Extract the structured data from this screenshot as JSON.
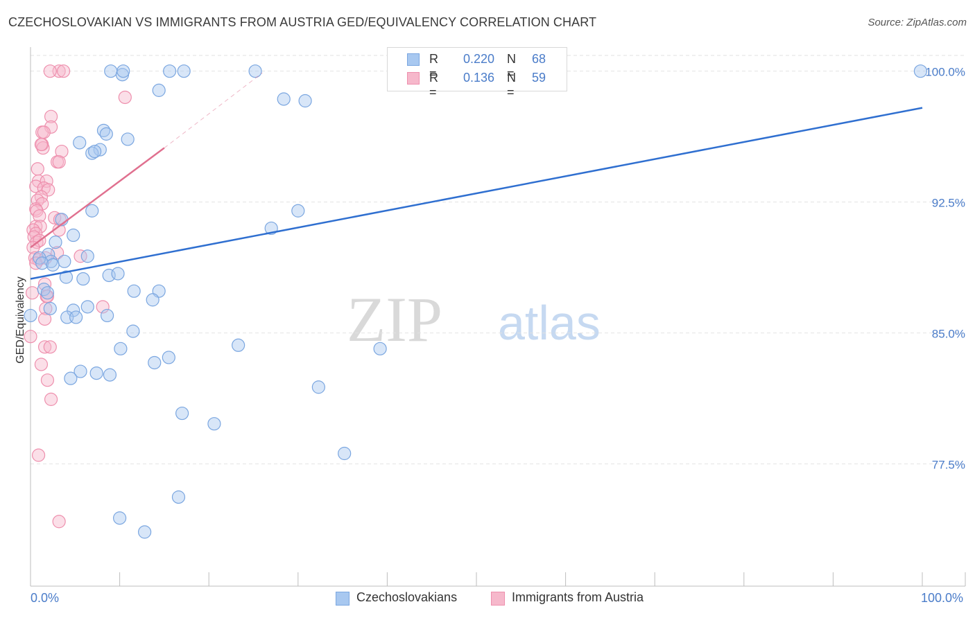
{
  "title": "CZECHOSLOVAKIAN VS IMMIGRANTS FROM AUSTRIA GED/EQUIVALENCY CORRELATION CHART",
  "source": "Source: ZipAtlas.com",
  "watermark": {
    "zip": "ZIP",
    "atlas": "atlas"
  },
  "colors": {
    "blue_fill": "#a8c8f0",
    "blue_stroke": "#7aa6e0",
    "blue_line": "#2f6fd0",
    "pink_fill": "#f6b8cb",
    "pink_stroke": "#ee8fad",
    "pink_line": "#e0708f",
    "axis_text": "#4a7cc9",
    "grid": "#e2e2e2"
  },
  "legend": {
    "rows": [
      {
        "r_label": "R =",
        "r_value": "0.220",
        "n_label": "N =",
        "n_value": "68"
      },
      {
        "r_label": "R =",
        "r_value": "0.136",
        "n_label": "N =",
        "n_value": "59"
      }
    ]
  },
  "bottom_legend": {
    "series1": "Czechoslovakians",
    "series2": "Immigrants from Austria"
  },
  "x_axis": {
    "min_label": "0.0%",
    "max_label": "100.0%"
  },
  "chart_data": {
    "type": "scatter",
    "title": "CZECHOSLOVAKIAN VS IMMIGRANTS FROM AUSTRIA GED/EQUIVALENCY CORRELATION CHART",
    "xlabel": "",
    "ylabel": "GED/Equivalency",
    "xlim": [
      0,
      100
    ],
    "ylim": [
      70.5,
      100.9
    ],
    "y_ticks": [
      {
        "value": 100.0,
        "label": "100.0%"
      },
      {
        "value": 92.5,
        "label": "92.5%"
      },
      {
        "value": 85.0,
        "label": "85.0%"
      },
      {
        "value": 77.5,
        "label": "77.5%"
      }
    ],
    "x_tick_values": [
      0,
      10,
      20,
      30,
      40,
      50,
      60,
      70,
      80,
      90,
      100
    ],
    "grid": true,
    "series": [
      {
        "name": "Czechoslovakians",
        "color": "blue",
        "points": [
          [
            9.0,
            100.0
          ],
          [
            10.3,
            99.8
          ],
          [
            10.4,
            100.0
          ],
          [
            15.6,
            100.0
          ],
          [
            17.2,
            100.0
          ],
          [
            25.2,
            100.0
          ],
          [
            99.8,
            100.0
          ],
          [
            14.4,
            98.9
          ],
          [
            28.4,
            98.4
          ],
          [
            30.8,
            98.3
          ],
          [
            8.2,
            96.6
          ],
          [
            8.5,
            96.4
          ],
          [
            10.9,
            96.1
          ],
          [
            5.5,
            95.9
          ],
          [
            7.8,
            95.5
          ],
          [
            6.9,
            95.3
          ],
          [
            7.2,
            95.4
          ],
          [
            3.5,
            91.5
          ],
          [
            6.9,
            92.0
          ],
          [
            30.0,
            92.0
          ],
          [
            27.0,
            91.0
          ],
          [
            2.8,
            90.2
          ],
          [
            4.8,
            90.6
          ],
          [
            2.0,
            89.5
          ],
          [
            2.3,
            89.1
          ],
          [
            1.0,
            89.3
          ],
          [
            1.3,
            89.0
          ],
          [
            3.8,
            89.1
          ],
          [
            6.4,
            89.4
          ],
          [
            2.5,
            88.9
          ],
          [
            4.0,
            88.2
          ],
          [
            5.9,
            88.1
          ],
          [
            8.8,
            88.3
          ],
          [
            9.8,
            88.4
          ],
          [
            1.5,
            87.5
          ],
          [
            1.9,
            87.3
          ],
          [
            11.6,
            87.4
          ],
          [
            14.4,
            87.4
          ],
          [
            13.7,
            86.9
          ],
          [
            2.2,
            86.4
          ],
          [
            4.8,
            86.3
          ],
          [
            6.4,
            86.5
          ],
          [
            4.1,
            85.9
          ],
          [
            5.1,
            85.9
          ],
          [
            8.6,
            86.0
          ],
          [
            0.0,
            86.0
          ],
          [
            11.5,
            85.1
          ],
          [
            10.1,
            84.1
          ],
          [
            23.3,
            84.3
          ],
          [
            39.2,
            84.1
          ],
          [
            15.5,
            83.6
          ],
          [
            13.9,
            83.3
          ],
          [
            5.6,
            82.8
          ],
          [
            4.5,
            82.4
          ],
          [
            7.4,
            82.7
          ],
          [
            8.9,
            82.6
          ],
          [
            32.3,
            81.9
          ],
          [
            17.0,
            80.4
          ],
          [
            20.6,
            79.8
          ],
          [
            35.2,
            78.1
          ],
          [
            16.6,
            75.6
          ],
          [
            10.0,
            74.4
          ],
          [
            12.8,
            73.6
          ]
        ]
      },
      {
        "name": "Immigrants from Austria",
        "color": "pink",
        "points": [
          [
            3.2,
            100.0
          ],
          [
            3.7,
            100.0
          ],
          [
            2.2,
            100.0
          ],
          [
            10.6,
            98.5
          ],
          [
            2.3,
            97.4
          ],
          [
            2.3,
            96.8
          ],
          [
            1.3,
            96.5
          ],
          [
            1.5,
            96.5
          ],
          [
            1.3,
            95.8
          ],
          [
            1.4,
            95.6
          ],
          [
            1.2,
            95.8
          ],
          [
            3.5,
            95.4
          ],
          [
            3.0,
            94.8
          ],
          [
            3.2,
            94.8
          ],
          [
            0.8,
            94.4
          ],
          [
            0.9,
            93.7
          ],
          [
            1.8,
            93.7
          ],
          [
            0.6,
            93.4
          ],
          [
            1.5,
            93.3
          ],
          [
            2.0,
            93.2
          ],
          [
            1.2,
            92.8
          ],
          [
            0.8,
            92.6
          ],
          [
            1.3,
            92.4
          ],
          [
            0.6,
            92.1
          ],
          [
            0.7,
            92.0
          ],
          [
            1.0,
            91.7
          ],
          [
            2.7,
            91.6
          ],
          [
            3.3,
            91.5
          ],
          [
            0.6,
            91.1
          ],
          [
            1.1,
            91.1
          ],
          [
            0.3,
            90.9
          ],
          [
            0.6,
            90.7
          ],
          [
            3.2,
            90.9
          ],
          [
            0.4,
            90.5
          ],
          [
            0.7,
            90.2
          ],
          [
            1.0,
            90.3
          ],
          [
            0.3,
            89.9
          ],
          [
            3.0,
            89.6
          ],
          [
            0.5,
            89.3
          ],
          [
            0.9,
            89.2
          ],
          [
            1.7,
            89.3
          ],
          [
            5.6,
            89.4
          ],
          [
            0.6,
            89.0
          ],
          [
            1.6,
            87.8
          ],
          [
            0.2,
            87.3
          ],
          [
            1.8,
            87.1
          ],
          [
            1.9,
            87.1
          ],
          [
            8.1,
            86.5
          ],
          [
            1.7,
            86.4
          ],
          [
            1.6,
            85.8
          ],
          [
            0.0,
            84.8
          ],
          [
            1.6,
            84.2
          ],
          [
            2.2,
            84.2
          ],
          [
            1.2,
            83.2
          ],
          [
            1.9,
            82.3
          ],
          [
            2.3,
            81.2
          ],
          [
            0.9,
            78.0
          ],
          [
            3.2,
            74.2
          ]
        ]
      }
    ],
    "trend_lines": [
      {
        "series": "Czechoslovakians",
        "x0": 0,
        "y0": 88.1,
        "x1": 100,
        "y1": 97.9,
        "style": "solid"
      },
      {
        "series": "Immigrants from Austria",
        "x0": 0,
        "y0": 89.9,
        "x1": 15,
        "y1": 95.6,
        "style": "solid"
      },
      {
        "series": "Immigrants from Austria",
        "x0": 15,
        "y0": 95.6,
        "x1": 26,
        "y1": 99.9,
        "style": "dashed"
      }
    ]
  }
}
